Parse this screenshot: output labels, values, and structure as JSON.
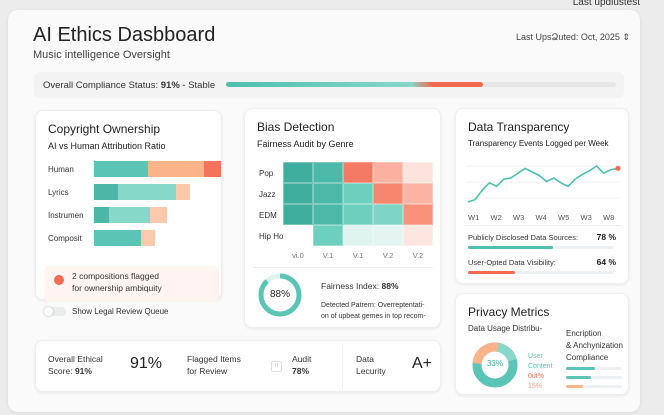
{
  "top_note": "Last updlustest",
  "header": {
    "title": "AI Ethics Dasbboard",
    "subtitle": "Music intelligence Oversight",
    "updated": "Last UpsՁuted: Oct, 2025",
    "updated_icon": "chevron-updown-icon"
  },
  "compliance": {
    "label": "Overall Compliance Status:",
    "value": "91%",
    "trend": "- Stable",
    "fill": 0.66
  },
  "copyright": {
    "title": "Copyright Ownership",
    "subtitle": "AI vs Human Attribution Ratio",
    "rows": [
      {
        "label": "Human",
        "segments": [
          {
            "v": 42,
            "c": "#5cc4b4"
          },
          {
            "v": 44,
            "c": "#fbb48a"
          },
          {
            "v": 13,
            "c": "#f5735c"
          }
        ]
      },
      {
        "label": "Lyrics",
        "segments": [
          {
            "v": 19,
            "c": "#4db6a6"
          },
          {
            "v": 45,
            "c": "#86d8c9"
          },
          {
            "v": 11,
            "c": "#fdc9ad"
          }
        ]
      },
      {
        "label": "Instrumen",
        "segments": [
          {
            "v": 12,
            "c": "#4db6a6"
          },
          {
            "v": 32,
            "c": "#86d8c9"
          },
          {
            "v": 13,
            "c": "#fdc9ad"
          }
        ]
      },
      {
        "label": "Composit",
        "segments": [
          {
            "v": 37,
            "c": "#5cc4b4"
          },
          {
            "v": 11,
            "c": "#fdc9ad"
          }
        ]
      }
    ],
    "alert": "2 compositions flagged",
    "alert2": "for ownership ambiquity",
    "toggle": "Show Legal Review Queue",
    "toggle_on": false
  },
  "bias": {
    "title": "Bias Detection",
    "subtitle": "Fairness Audit by Genre",
    "rows": [
      "Pop",
      "Jazz",
      "EDM",
      "Hip Hop"
    ],
    "cols": [
      "vi.0",
      "V.1",
      "V.1",
      "V.2",
      "V.2"
    ],
    "cells": [
      [
        "#3fae9e",
        "#4bb8a8",
        "#f57a63",
        "#fbb0a0",
        "#fde3dc"
      ],
      [
        "#3fae9e",
        "#4bb8a8",
        "#6dcfbe",
        "#f7866f",
        "#fbb3a3"
      ],
      [
        "#3fae9e",
        "#4bb8a8",
        "#6dcfbe",
        "#7fd5c5",
        "#f9917b"
      ],
      [
        "#ffffff",
        "#6dcfbe",
        "#dff3ef",
        "#e3f4f1",
        "#fde6e0"
      ]
    ],
    "gauge": "88%",
    "gauge_value": 0.88,
    "index_label": "Fairness Index:",
    "index_value": "88%",
    "pattern1": "Detected Patrern: Overreptentati-",
    "pattern2": "on of upbeat gemes in top recom-"
  },
  "transparency": {
    "title": "Data Transparency",
    "subtitle": "Transparency Events Logged per Week",
    "xticks": [
      "W1",
      "W2",
      "W3",
      "W4",
      "W5",
      "W3",
      "W8"
    ],
    "line": [
      10,
      14,
      30,
      42,
      36,
      48,
      50,
      58,
      66,
      60,
      54,
      44,
      50,
      42,
      36,
      48,
      56,
      62,
      70,
      58,
      64,
      66
    ],
    "metrics": [
      {
        "label": "Publicly Disclosed Data Sources:",
        "value": "78 %",
        "fill": 0.58,
        "color": "#4dbfae"
      },
      {
        "label": "User-Opted Data Visibility:",
        "value": "64 %",
        "fill": 0.32,
        "color": "#f26b52"
      }
    ]
  },
  "privacy": {
    "title": "Privacy Metrics",
    "subtitle": "Data Usage Distribu-",
    "donut": "33%",
    "legend1": "User",
    "legend2": "Content",
    "legend3": "0ut%",
    "legend4": "15%",
    "enc1": "Encription",
    "enc2": "& Anchynization",
    "enc3": "Compliance",
    "bars": [
      {
        "fill": 0.52,
        "color": "#5cc4b4"
      },
      {
        "fill": 0.44,
        "color": "#5cc4b4"
      },
      {
        "fill": 0.3,
        "color": "#fbb48a"
      }
    ]
  },
  "stats": {
    "score_l1": "Overall Ethical",
    "score_l2": "Score:",
    "score_v": "91%",
    "big": "91%",
    "flag1": "Flagged Items",
    "flag2": "for Review",
    "audit": "Audit",
    "audit_v": "78%",
    "sec1": "Data",
    "sec2": "Lecurity",
    "grade": "A+"
  }
}
